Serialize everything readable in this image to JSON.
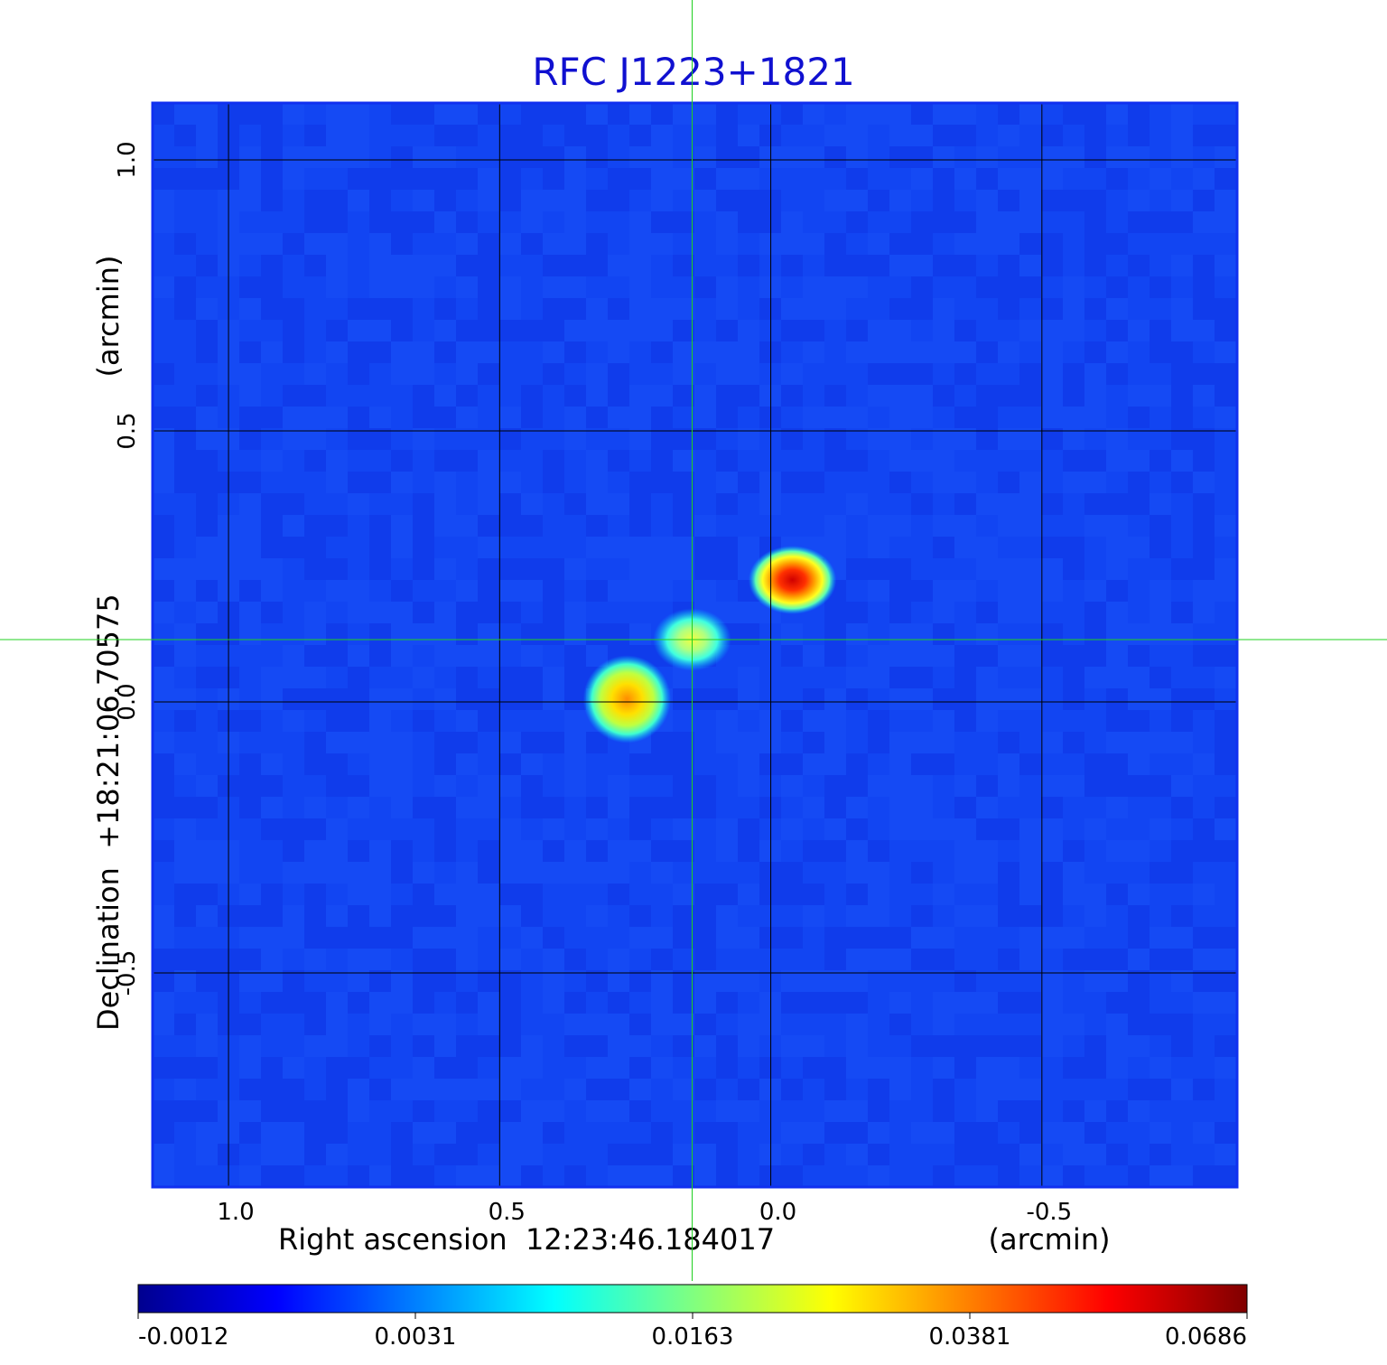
{
  "chart_data": {
    "type": "heatmap",
    "title": "RFC J1223+1821",
    "xlabel": "Right ascension  12:23:46.184017",
    "xunit": "(arcmin)",
    "ylabel": "Declination  +18:21:06.70575",
    "yunit": "(arcmin)",
    "xlim": [
      1.14,
      -0.86
    ],
    "ylim": [
      -0.895,
      1.105
    ],
    "xticks": [
      1.0,
      0.5,
      0.0,
      -0.5
    ],
    "xtick_labels": [
      "1.0",
      "0.5",
      "0.0",
      "-0.5"
    ],
    "yticks": [
      1.0,
      0.5,
      0.0,
      -0.5
    ],
    "ytick_labels": [
      "1.0",
      "0.5",
      "0.0",
      "-0.5"
    ],
    "grid": true,
    "crosshair": {
      "x": 0.145,
      "y": 0.115
    },
    "colormap": "jet",
    "background_level": 0.0,
    "components": [
      {
        "x": -0.04,
        "y": 0.225,
        "peak": 0.0686,
        "sigma_x": 0.045,
        "sigma_y": 0.035
      },
      {
        "x": 0.145,
        "y": 0.115,
        "peak": 0.024,
        "sigma_x": 0.04,
        "sigma_y": 0.032
      },
      {
        "x": 0.265,
        "y": 0.005,
        "peak": 0.037,
        "sigma_x": 0.045,
        "sigma_y": 0.045
      }
    ],
    "colorbar": {
      "ticks": [
        -0.0012,
        0.0031,
        0.0163,
        0.0381,
        0.0686
      ],
      "tick_labels": [
        "-0.0012",
        "0.0031",
        "0.0163",
        "0.0381",
        "0.0686"
      ]
    }
  },
  "colors": {
    "title": "#1010d0",
    "frame": "#1030f0",
    "grid": "#000000",
    "crosshair": "#20d020",
    "axis_text": "#000000"
  }
}
